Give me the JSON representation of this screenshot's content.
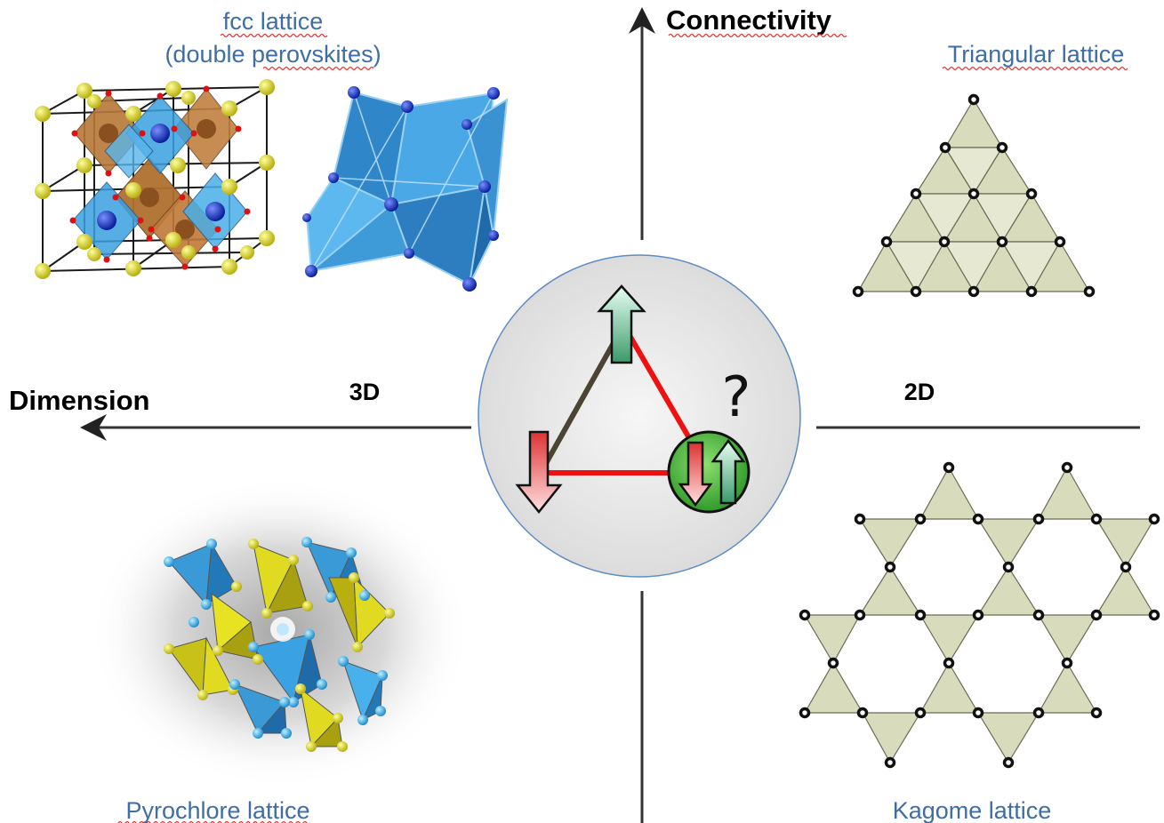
{
  "labels": {
    "fcc_title": "fcc lattice",
    "fcc_subtitle": "(double perovskites)",
    "connectivity": "Connectivity",
    "triangular": "Triangular lattice",
    "dimension": "Dimension",
    "dim_3d": "3D",
    "dim_2d": "2D",
    "pyrochlore": "Pyrochlore lattice",
    "kagome": "Kagome lattice",
    "question": "?"
  },
  "colors": {
    "label_blue": "#3e6ea5",
    "lattice_fill": "#d8dcbc",
    "bond_red": "#ee1111",
    "bond_dark": "#4a4430",
    "circle_green": "#49b23a",
    "octahedron_blue": "#3aa0e0",
    "octahedron_brown": "#b87838",
    "atom_yellow": "#e2dd2a"
  },
  "icons": {
    "spin_up": "arrow-up-green-icon",
    "spin_down": "arrow-down-red-icon",
    "spin_pair": "up-down-spin-pair-icon"
  }
}
